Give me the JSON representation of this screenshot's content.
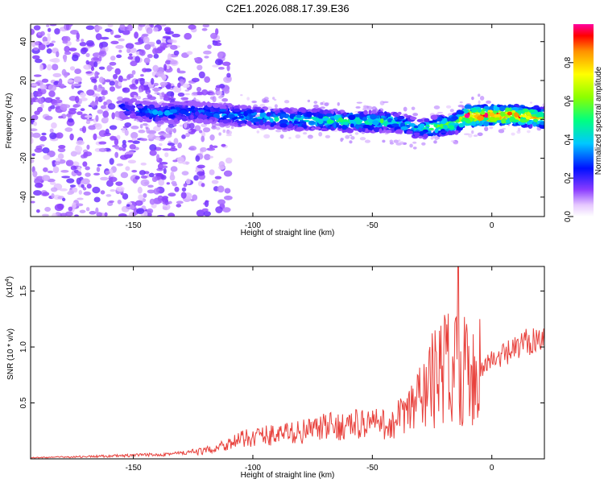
{
  "title": "C2E1.2026.088.17.39.E36",
  "chart_data": [
    {
      "type": "heatmap",
      "xlabel": "Height of straight line (km)",
      "ylabel": "Frequency (Hz)",
      "xlim": [
        -193,
        22
      ],
      "ylim": [
        -50,
        49
      ],
      "xticks": [
        -150,
        -100,
        -50,
        0
      ],
      "yticks": [
        -40,
        -20,
        0,
        20,
        40
      ],
      "colorbar": {
        "label": "Normalized spectral amplitude",
        "range": [
          0,
          1
        ],
        "ticks": [
          0.0,
          0.2,
          0.4,
          0.6,
          0.8
        ]
      },
      "ridge": {
        "x": [
          -155,
          -140,
          -125,
          -115,
          -100,
          -80,
          -60,
          -45,
          -38,
          -30,
          -25,
          -15,
          -10,
          0,
          10,
          20
        ],
        "freq": [
          6,
          3,
          4,
          3,
          1,
          0,
          -1,
          -1,
          -2,
          -5,
          -4,
          -2,
          2,
          2,
          2,
          1
        ],
        "amplitude": [
          0.25,
          0.35,
          0.3,
          0.35,
          0.4,
          0.45,
          0.5,
          0.5,
          0.45,
          0.4,
          0.55,
          0.6,
          0.9,
          0.95,
          0.9,
          0.7
        ]
      }
    },
    {
      "type": "line",
      "xlabel": "Height of straight line (km)",
      "ylabel": "SNR (10 * v/v)",
      "yscale_label": "(x10",
      "yscale_exp": "4",
      "yscale_close": ")",
      "xlim": [
        -193,
        22
      ],
      "ylim": [
        0,
        1.72
      ],
      "xticks": [
        -150,
        -100,
        -50,
        0
      ],
      "yticks": [
        0.5,
        1.0,
        1.5
      ],
      "series": [
        {
          "name": "SNR",
          "color": "#e8413c",
          "x": [
            -193,
            -170,
            -150,
            -130,
            -120,
            -110,
            -100,
            -90,
            -80,
            -70,
            -60,
            -50,
            -45,
            -40,
            -35,
            -30,
            -25,
            -20,
            -15,
            -10,
            -5,
            0,
            5,
            10,
            15,
            20
          ],
          "y": [
            0.01,
            0.02,
            0.03,
            0.05,
            0.07,
            0.14,
            0.2,
            0.22,
            0.24,
            0.28,
            0.3,
            0.33,
            0.3,
            0.32,
            0.4,
            0.55,
            0.7,
            0.8,
            0.88,
            0.75,
            0.82,
            0.88,
            0.92,
            0.98,
            1.05,
            1.1
          ]
        }
      ]
    }
  ]
}
